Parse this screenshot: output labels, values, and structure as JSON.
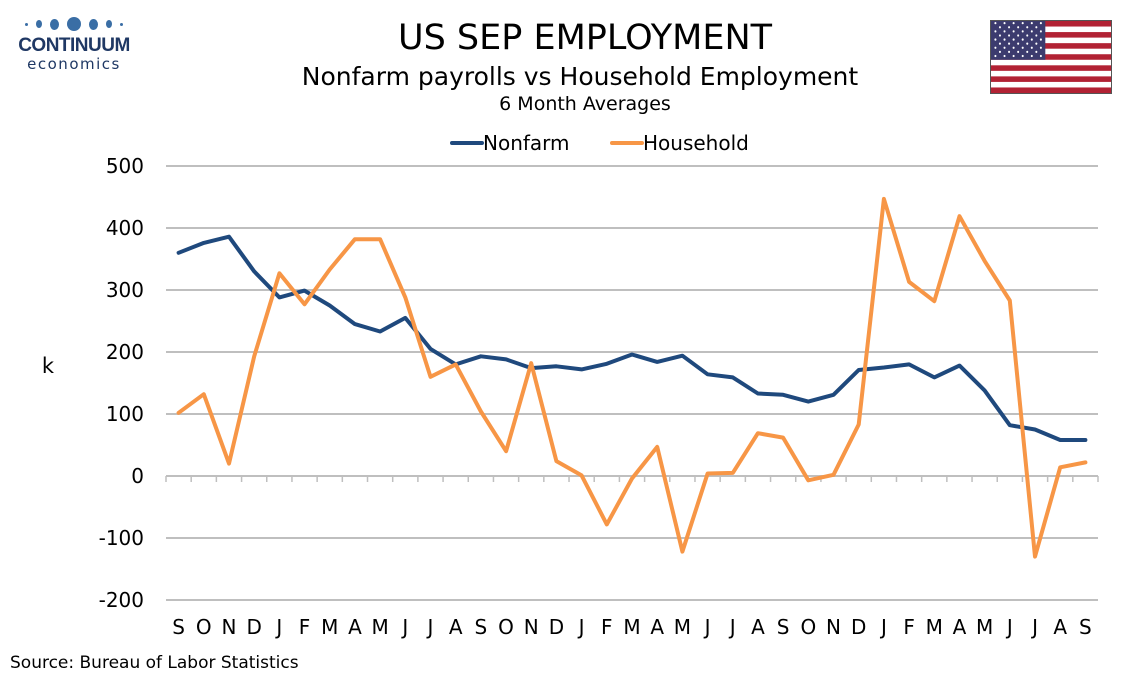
{
  "logo": {
    "name": "CONTINUUM",
    "sub": "economics",
    "color": "#1f3864"
  },
  "source": "Source: Bureau of Labor Statistics",
  "flag": {
    "name": "us-flag"
  },
  "chart_data": {
    "type": "line",
    "title": "US SEP EMPLOYMENT",
    "subtitle": "Nonfarm payrolls vs Household Employment",
    "subtitle2": "6 Month Averages",
    "ylabel": "k",
    "xlabel": "",
    "ylim": [
      -200,
      500
    ],
    "yticks": [
      -200,
      -100,
      0,
      100,
      200,
      300,
      400,
      500
    ],
    "grid": true,
    "legend_position": "top-center",
    "categories": [
      "S",
      "O",
      "N",
      "D",
      "J",
      "F",
      "M",
      "A",
      "M",
      "J",
      "J",
      "A",
      "S",
      "O",
      "N",
      "D",
      "J",
      "F",
      "M",
      "A",
      "M",
      "J",
      "J",
      "A",
      "S",
      "O",
      "N",
      "D",
      "J",
      "F",
      "M",
      "A",
      "M",
      "J",
      "J",
      "A",
      "S"
    ],
    "series": [
      {
        "name": "Nonfarm",
        "color": "#1f497d",
        "values": [
          360,
          376,
          386,
          330,
          288,
          299,
          275,
          245,
          233,
          255,
          205,
          180,
          193,
          188,
          174,
          177,
          172,
          181,
          196,
          184,
          194,
          164,
          159,
          133,
          131,
          120,
          131,
          171,
          175,
          180,
          159,
          178,
          138,
          82,
          75,
          58,
          58
        ]
      },
      {
        "name": "Household",
        "color": "#f79646",
        "values": [
          102,
          132,
          20,
          193,
          327,
          277,
          333,
          382,
          382,
          288,
          160,
          180,
          104,
          40,
          182,
          24,
          1,
          -78,
          -4,
          47,
          -122,
          4,
          5,
          69,
          62,
          -7,
          2,
          83,
          447,
          313,
          282,
          419,
          347,
          283,
          -130,
          14,
          22
        ]
      }
    ]
  }
}
